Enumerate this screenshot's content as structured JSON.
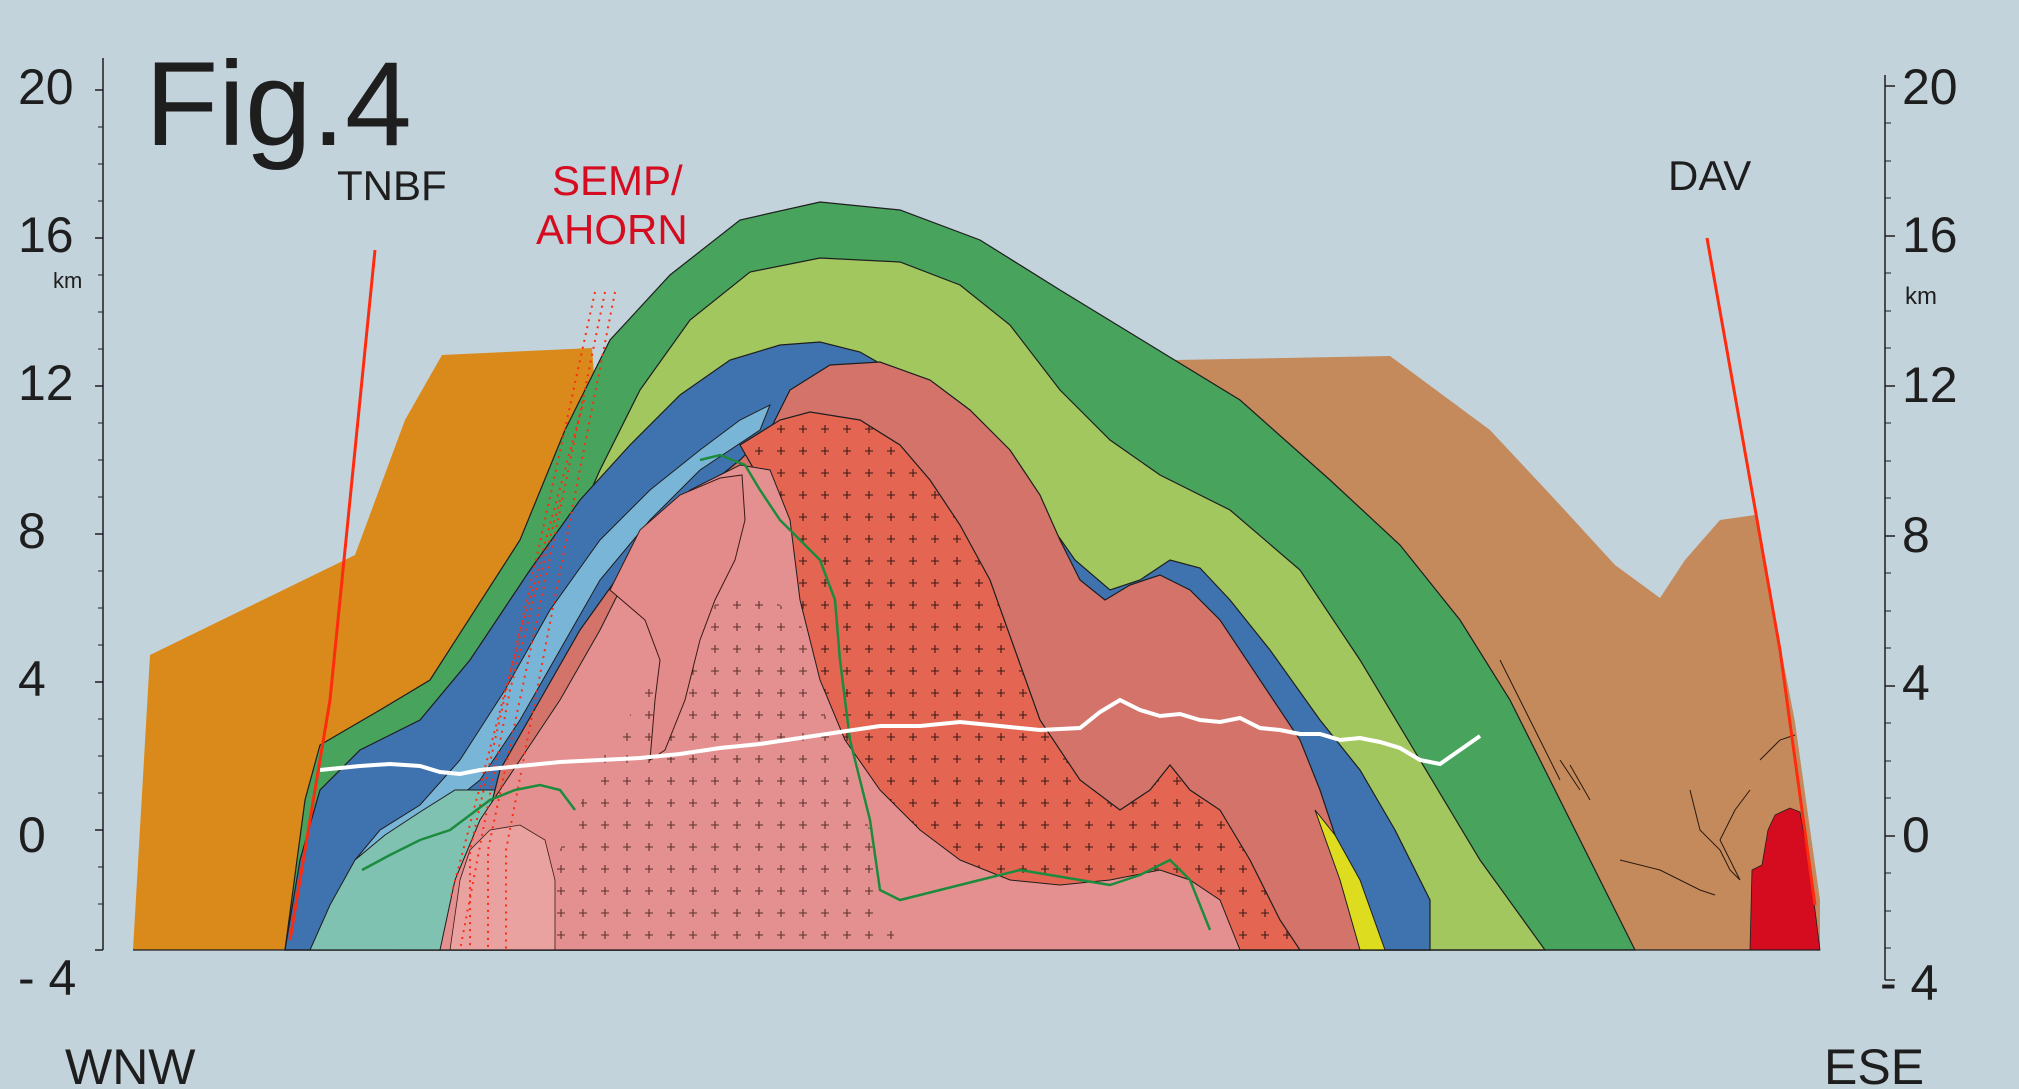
{
  "figure": {
    "title": "Fig.4"
  },
  "axes": {
    "left_ticks": [
      "20",
      "16",
      "12",
      "8",
      "4",
      "0",
      "- 4"
    ],
    "right_ticks": [
      "20",
      "16",
      "12",
      "8",
      "4",
      "0",
      "- 4"
    ],
    "unit_left": "km",
    "unit_right": "km"
  },
  "labels": {
    "tnbf": "TNBF",
    "semp_line1": "SEMP/",
    "semp_line2": "AHORN",
    "dav": "DAV",
    "wnw": "WNW",
    "ese": "ESE"
  },
  "colors": {
    "background": "#c3d3dc",
    "orange_unit": "#d98a1a",
    "brown_unit": "#c48a5c",
    "dark_green": "#48a35c",
    "light_green": "#a2c75f",
    "blue": "#3f73b0",
    "light_blue": "#79b5d6",
    "teal": "#7fc2b2",
    "salmon_upper": "#d4736a",
    "salmon_core": "#e46552",
    "pink_gneiss": "#e59090",
    "yellow": "#dedc1e",
    "red_block": "#d50c20",
    "fault_red": "#ff2b0e",
    "white_line": "#ffffff"
  }
}
